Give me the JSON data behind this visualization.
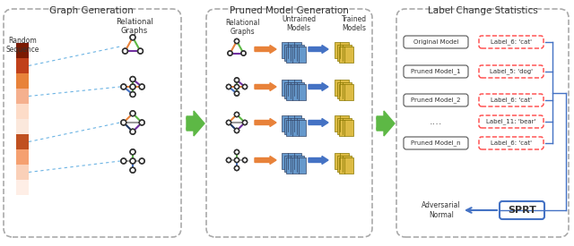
{
  "title_graph_gen": "Graph Generation",
  "title_pruned_gen": "Pruned Model Generation",
  "title_label_stats": "Label Change Statistics",
  "colors": {
    "orange": "#E8823A",
    "green": "#5DB845",
    "blue": "#4472C4",
    "purple": "#7030A0",
    "dark_navy": "#1F3864",
    "red_dashed": "#FF0000",
    "sprt_blue": "#4472C4",
    "arrow_green": "#5DB845",
    "background": "#FFFFFF",
    "dashed_border": "#888888",
    "light_blue_dashed": "#6CB4E4",
    "color_bar_1": "#7B1A00",
    "color_bar_2": "#C0401A",
    "color_bar_3": "#E8823A",
    "color_bar_4": "#F5B08E",
    "color_bar_5": "#FDDCC8",
    "color_bar_6": "#FBE8DC",
    "color_bar_7": "#C05020",
    "color_bar_8": "#F5A070",
    "color_bar_9": "#FAD0B8",
    "color_bar_10": "#FEEEE6"
  },
  "color_sequence": [
    "#7B1A00",
    "#C0401A",
    "#E8823A",
    "#F5B08E",
    "#FDDCC8",
    "#FBE8DC",
    "#C05020",
    "#F5A070",
    "#FAD0B8",
    "#FEEEE6"
  ],
  "model_labels": [
    "Original Model",
    "Pruned Model_1",
    "Pruned Model_2",
    "Pruned Model_n"
  ],
  "pred_labels": [
    "Label_6: 'cat'",
    "Label_5: 'dog'",
    "Label_6: 'cat'",
    "Label_6: 'cat'"
  ],
  "ellipsis_label": "Label_11: 'bear'",
  "adversarial_text": "Adversarial\nNormal",
  "sprt_text": "SPRT",
  "relational_graphs_text": "Relational\nGraphs",
  "untrained_models_text": "Untrained\nModels",
  "trained_models_text": "Trained\nModels",
  "random_seq_text": "Random\nSequence",
  "relational_graphs2_text": "Relational\nGraphs"
}
